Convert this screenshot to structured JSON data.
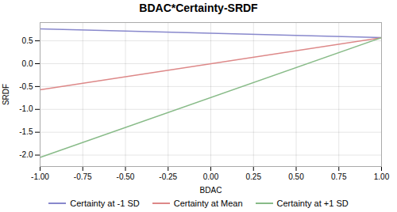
{
  "chart_data": {
    "type": "line",
    "title": "BDAC*Certainty-SRDF",
    "xlabel": "BDAC",
    "ylabel": "SRDF",
    "x": [
      -1.0,
      1.0
    ],
    "series": [
      {
        "name": "Certainty at -1 SD",
        "color": "#8888cc",
        "values": [
          0.76,
          0.57
        ]
      },
      {
        "name": "Certainty at Mean",
        "color": "#dd8888",
        "values": [
          -0.57,
          0.57
        ]
      },
      {
        "name": "Certainty at +1 SD",
        "color": "#88bb88",
        "values": [
          -2.05,
          0.57
        ]
      }
    ],
    "xlim": [
      -1.0,
      1.0
    ],
    "ylim": [
      -2.25,
      0.9
    ],
    "xticks": [
      {
        "value": -1.0,
        "label": "-1.00"
      },
      {
        "value": -0.75,
        "label": "-0.75"
      },
      {
        "value": -0.5,
        "label": "-0.50"
      },
      {
        "value": -0.25,
        "label": "-0.25"
      },
      {
        "value": 0.0,
        "label": "0.00"
      },
      {
        "value": 0.25,
        "label": "0.25"
      },
      {
        "value": 0.5,
        "label": "0.50"
      },
      {
        "value": 0.75,
        "label": "0.75"
      },
      {
        "value": 1.0,
        "label": "1.00"
      }
    ],
    "yticks": [
      {
        "value": -2.0,
        "label": "-2.0"
      },
      {
        "value": -1.5,
        "label": "-1.5"
      },
      {
        "value": -1.0,
        "label": "-1.0"
      },
      {
        "value": -0.5,
        "label": "-0.5"
      },
      {
        "value": 0.0,
        "label": "0.0"
      },
      {
        "value": 0.5,
        "label": "0.5"
      }
    ],
    "grid": true,
    "legend": "bottom"
  }
}
